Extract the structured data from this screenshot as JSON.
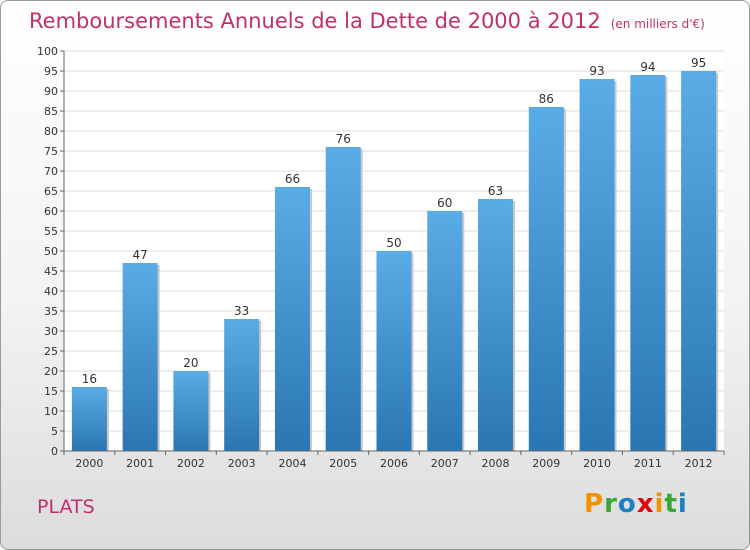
{
  "title": "Remboursements Annuels de la Dette de 2000 à 2012",
  "unit": "(en milliers d'€)",
  "commune": "PLATS",
  "logo": {
    "letters": [
      "P",
      "r",
      "o",
      "x",
      "i",
      "t",
      "i"
    ],
    "colors": [
      "#f39200",
      "#3aa635",
      "#1d7fc4",
      "#e30613",
      "#f39200",
      "#3aa635",
      "#1d7fc4"
    ]
  },
  "colors": {
    "bar_top": "#5aace6",
    "bar_bottom": "#2a76b3",
    "title": "#c0306d"
  },
  "chart_data": {
    "type": "bar",
    "categories": [
      "2000",
      "2001",
      "2002",
      "2003",
      "2004",
      "2005",
      "2006",
      "2007",
      "2008",
      "2009",
      "2010",
      "2011",
      "2012"
    ],
    "values": [
      16,
      47,
      20,
      33,
      66,
      76,
      50,
      60,
      63,
      86,
      93,
      94,
      95
    ],
    "ylim": [
      0,
      100
    ],
    "ytick_step": 5,
    "grid": true,
    "xlabel": "",
    "ylabel": ""
  }
}
